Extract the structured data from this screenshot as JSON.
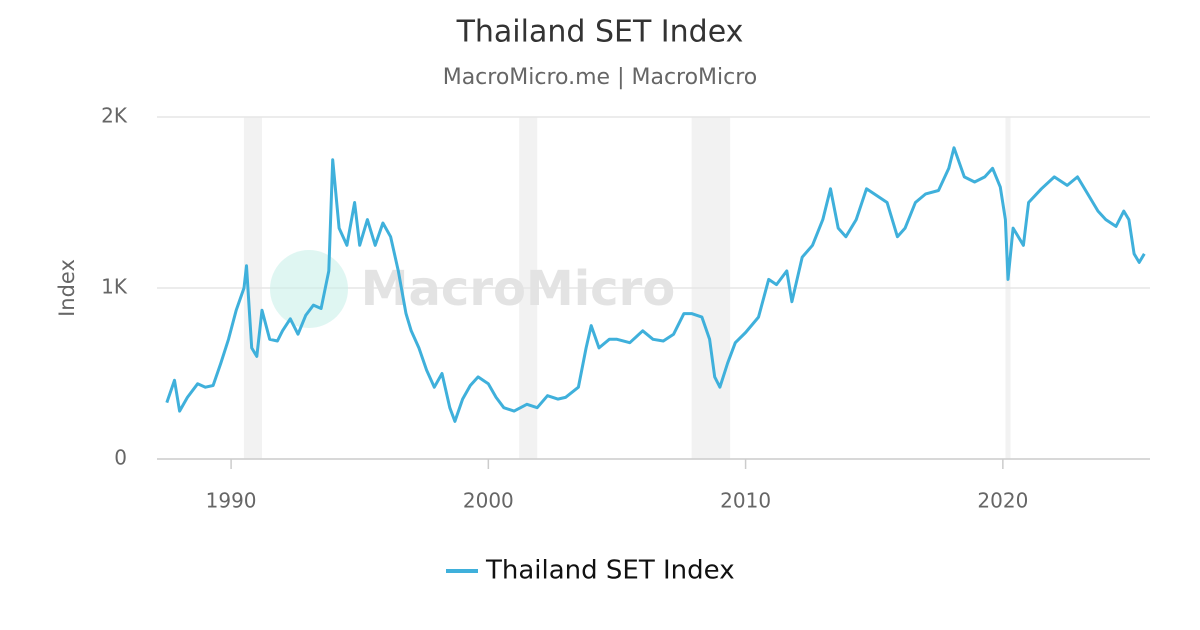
{
  "chart_data": {
    "type": "line",
    "title": "Thailand SET Index",
    "subtitle": "MacroMicro.me | MacroMicro",
    "watermark": "MacroMicro",
    "y_label": "Index",
    "xlim": [
      1987.12,
      2025.72
    ],
    "xticks": [
      1990,
      2000,
      2010,
      2020
    ],
    "ylim": [
      0,
      2000
    ],
    "yticks": [
      0,
      {
        "value": 1000,
        "label": "1K"
      },
      {
        "value": 2000,
        "label": "2K"
      }
    ],
    "grid": true,
    "legend": "bottom",
    "shaded_ranges": [
      [
        1990.5,
        1991.2
      ],
      [
        2001.2,
        2001.9
      ],
      [
        2007.9,
        2009.4
      ],
      [
        2020.1,
        2020.3
      ]
    ],
    "series": [
      {
        "name": "Thailand SET Index",
        "color": "#3fb0db",
        "x": [
          1987.5,
          1987.8,
          1988.0,
          1988.3,
          1988.7,
          1989.0,
          1989.3,
          1989.6,
          1989.9,
          1990.2,
          1990.5,
          1990.6,
          1990.8,
          1991.0,
          1991.2,
          1991.5,
          1991.8,
          1992.0,
          1992.3,
          1992.6,
          1992.9,
          1993.2,
          1993.5,
          1993.8,
          1993.95,
          1994.2,
          1994.5,
          1994.8,
          1995.0,
          1995.3,
          1995.6,
          1995.9,
          1996.2,
          1996.5,
          1996.8,
          1997.0,
          1997.3,
          1997.6,
          1997.9,
          1998.2,
          1998.5,
          1998.7,
          1999.0,
          1999.3,
          1999.6,
          2000.0,
          2000.3,
          2000.6,
          2001.0,
          2001.5,
          2001.9,
          2002.3,
          2002.7,
          2003.0,
          2003.5,
          2003.8,
          2004.0,
          2004.3,
          2004.7,
          2005.0,
          2005.5,
          2006.0,
          2006.4,
          2006.8,
          2007.2,
          2007.6,
          2007.9,
          2008.3,
          2008.6,
          2008.8,
          2009.0,
          2009.3,
          2009.6,
          2010.0,
          2010.5,
          2010.9,
          2011.2,
          2011.6,
          2011.8,
          2012.2,
          2012.6,
          2013.0,
          2013.3,
          2013.6,
          2013.9,
          2014.3,
          2014.7,
          2015.0,
          2015.5,
          2015.9,
          2016.2,
          2016.6,
          2017.0,
          2017.5,
          2017.9,
          2018.1,
          2018.5,
          2018.9,
          2019.3,
          2019.6,
          2019.9,
          2020.1,
          2020.2,
          2020.4,
          2020.8,
          2021.0,
          2021.5,
          2022.0,
          2022.5,
          2022.9,
          2023.3,
          2023.7,
          2024.0,
          2024.4,
          2024.7,
          2024.9,
          2025.1,
          2025.3,
          2025.5
        ],
        "values": [
          330,
          460,
          280,
          360,
          440,
          420,
          430,
          560,
          700,
          870,
          1000,
          1130,
          650,
          600,
          870,
          700,
          690,
          750,
          820,
          730,
          840,
          900,
          880,
          1100,
          1750,
          1350,
          1250,
          1500,
          1250,
          1400,
          1250,
          1380,
          1300,
          1100,
          850,
          750,
          650,
          520,
          420,
          500,
          300,
          220,
          350,
          430,
          480,
          440,
          360,
          300,
          280,
          320,
          300,
          370,
          350,
          360,
          420,
          650,
          780,
          650,
          700,
          700,
          680,
          750,
          700,
          690,
          730,
          850,
          850,
          830,
          700,
          480,
          420,
          560,
          680,
          740,
          830,
          1050,
          1020,
          1100,
          920,
          1180,
          1250,
          1400,
          1580,
          1350,
          1300,
          1400,
          1580,
          1550,
          1500,
          1300,
          1350,
          1500,
          1550,
          1570,
          1700,
          1820,
          1650,
          1620,
          1650,
          1700,
          1590,
          1400,
          1050,
          1350,
          1250,
          1500,
          1580,
          1650,
          1600,
          1650,
          1550,
          1450,
          1400,
          1360,
          1450,
          1400,
          1200,
          1150,
          1200
        ]
      }
    ]
  }
}
